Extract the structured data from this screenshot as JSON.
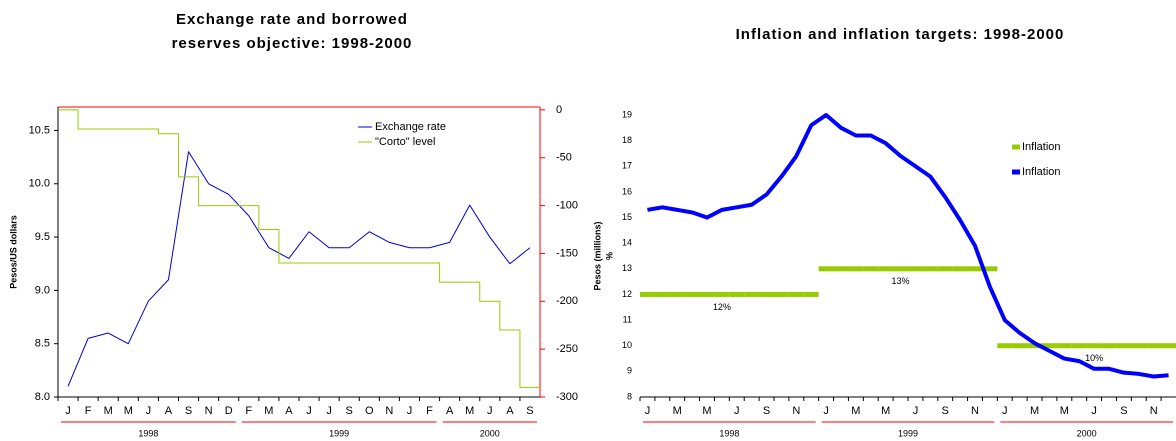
{
  "chart_data": [
    {
      "type": "line",
      "title": [
        "Exchange rate and borrowed",
        "reserves objective: 1998-2000"
      ],
      "y_label": "Pesos/US dollars",
      "categories": [
        "J",
        "F",
        "M",
        "M",
        "J",
        "A",
        "S",
        "N",
        "D",
        "F",
        "M",
        "A",
        "J",
        "J",
        "S",
        "O",
        "N",
        "J",
        "F",
        "A",
        "M",
        "J",
        "A",
        "S"
      ],
      "years": [
        "1998",
        "1999",
        "2000"
      ],
      "ylim": [
        8.0,
        10.72
      ],
      "yticks": [
        {
          "value": 8.0,
          "label": "8.0"
        },
        8.5,
        {
          "value": 9.0,
          "label": "9.0"
        },
        9.5,
        {
          "value": 10.0,
          "label": "10.0"
        },
        10.5
      ],
      "y2lim": [
        -300,
        3
      ],
      "y2ticks": [
        0,
        -50,
        -100,
        -150,
        -200,
        -250,
        -300
      ],
      "y2_color": "#ff0000",
      "legend": "top-right",
      "series": [
        {
          "name": "Exchange rate",
          "color": "#0000cc",
          "width": 1,
          "values": [
            8.1,
            8.55,
            8.6,
            8.5,
            8.9,
            9.1,
            10.3,
            10.0,
            9.9,
            9.7,
            9.4,
            9.3,
            9.55,
            9.4,
            9.4,
            9.55,
            9.45,
            9.4,
            9.4,
            9.45,
            9.8,
            9.5,
            9.25,
            9.4
          ]
        },
        {
          "name": "\"Corto\" level",
          "color": "#99cc00",
          "width": 1,
          "axis": "y2",
          "step": true,
          "values": [
            0,
            -20,
            -20,
            -20,
            -20,
            -25,
            -70,
            -100,
            -100,
            -100,
            -125,
            -160,
            -160,
            -160,
            -160,
            -160,
            -160,
            -160,
            -160,
            -180,
            -180,
            -200,
            -230,
            -290
          ]
        }
      ]
    },
    {
      "type": "line",
      "title": "Inflation and inflation targets: 1998-2000",
      "y_label": "Pesos (millions)",
      "y_unit": "%",
      "categories": [
        "J",
        null,
        "M",
        null,
        "M",
        null,
        "J",
        null,
        "S",
        null,
        "N",
        null,
        "J",
        null,
        "M",
        null,
        "M",
        null,
        "J",
        null,
        "S",
        null,
        "N",
        null,
        "J",
        null,
        "M",
        null,
        "M",
        null,
        "J",
        null,
        "S",
        null,
        "N",
        null
      ],
      "years": [
        "1998",
        "1999",
        "2000"
      ],
      "ylim": [
        8,
        19
      ],
      "yticks": [
        8,
        9,
        10,
        11,
        12,
        13,
        14,
        15,
        16,
        17,
        18,
        19
      ],
      "legend": "top-right",
      "series": [
        {
          "name": "Inflation",
          "color": "#99cc00",
          "width": 5,
          "segments": true,
          "values": [
            12,
            12,
            12,
            12,
            12,
            12,
            12,
            12,
            12,
            12,
            12,
            12,
            13,
            13,
            13,
            13,
            13,
            13,
            13,
            13,
            13,
            13,
            13,
            13,
            10,
            10,
            10,
            10,
            10,
            10,
            10,
            10,
            10,
            10,
            10,
            10
          ],
          "value_labels": [
            null,
            null,
            null,
            null,
            null,
            "12%",
            null,
            null,
            null,
            null,
            null,
            null,
            null,
            null,
            null,
            null,
            null,
            "13%",
            null,
            null,
            null,
            null,
            null,
            null,
            null,
            null,
            null,
            null,
            null,
            null,
            "10%",
            null,
            null,
            null,
            null,
            null
          ]
        },
        {
          "name": "Inflation",
          "color": "#0000ff",
          "width": 4,
          "values": [
            15.3,
            15.4,
            15.3,
            15.2,
            15.0,
            15.3,
            15.4,
            15.5,
            15.9,
            16.6,
            17.4,
            18.6,
            19.0,
            18.5,
            18.2,
            18.2,
            17.9,
            17.4,
            17.0,
            16.6,
            15.8,
            14.9,
            13.9,
            12.3,
            11.0,
            10.5,
            10.1,
            9.8,
            9.5,
            9.4,
            9.1,
            9.1,
            8.95,
            8.9,
            8.8,
            8.85
          ]
        }
      ]
    }
  ]
}
